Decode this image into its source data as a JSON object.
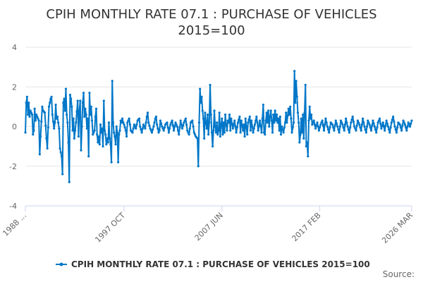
{
  "chart_data": {
    "type": "line",
    "title_lines": [
      "CPIH MONTHLY RATE 07.1 : PURCHASE OF VEHICLES",
      "2015=100"
    ],
    "series_name": "CPIH MONTHLY RATE 07.1 : PURCHASE OF VEHICLES 2015=100",
    "color": "#0077c8",
    "ylim": [
      -4,
      4
    ],
    "yticks": [
      -4,
      -2,
      0,
      2,
      4
    ],
    "x_ticks": [
      {
        "label": "1988 ...",
        "index": 0
      },
      {
        "label": "1997 OCT",
        "index": 117
      },
      {
        "label": "2007 JUN",
        "index": 233
      },
      {
        "label": "2017 FEB",
        "index": 349
      },
      {
        "label": "2026 MAR",
        "index": 458
      }
    ],
    "n_points": 459,
    "anchors": [
      [
        0,
        -0.3
      ],
      [
        1,
        1.2
      ],
      [
        2,
        1.5
      ],
      [
        3,
        0.6
      ],
      [
        4,
        1.2
      ],
      [
        5,
        0.5
      ],
      [
        6,
        0.8
      ],
      [
        8,
        0.6
      ],
      [
        9,
        -0.4
      ],
      [
        10,
        -0.2
      ],
      [
        11,
        0.9
      ],
      [
        12,
        0.3
      ],
      [
        13,
        0.6
      ],
      [
        14,
        0.5
      ],
      [
        16,
        0.3
      ],
      [
        17,
        -1.4
      ],
      [
        18,
        -0.5
      ],
      [
        20,
        1.0
      ],
      [
        21,
        0.8
      ],
      [
        23,
        0.7
      ],
      [
        25,
        -0.6
      ],
      [
        26,
        -1.1
      ],
      [
        28,
        1.0
      ],
      [
        30,
        1.4
      ],
      [
        31,
        1.5
      ],
      [
        32,
        0.6
      ],
      [
        34,
        -0.1
      ],
      [
        35,
        0.2
      ],
      [
        36,
        1.1
      ],
      [
        37,
        0.4
      ],
      [
        38,
        0.5
      ],
      [
        40,
        -0.1
      ],
      [
        41,
        -1.1
      ],
      [
        42,
        -1.3
      ],
      [
        43,
        -1.5
      ],
      [
        44,
        -2.4
      ],
      [
        45,
        1.2
      ],
      [
        46,
        1.4
      ],
      [
        47,
        0.8
      ],
      [
        48,
        1.9
      ],
      [
        49,
        0.6
      ],
      [
        50,
        0.2
      ],
      [
        51,
        -0.8
      ],
      [
        52,
        -2.8
      ],
      [
        53,
        1.6
      ],
      [
        54,
        1.4
      ],
      [
        55,
        1.0
      ],
      [
        56,
        -0.2
      ],
      [
        57,
        0.4
      ],
      [
        58,
        -0.6
      ],
      [
        60,
        0.2
      ],
      [
        62,
        1.3
      ],
      [
        63,
        -0.5
      ],
      [
        64,
        0.8
      ],
      [
        65,
        1.3
      ],
      [
        66,
        -1.2
      ],
      [
        68,
        1.2
      ],
      [
        69,
        1.7
      ],
      [
        70,
        0.5
      ],
      [
        71,
        0.9
      ],
      [
        72,
        0.6
      ],
      [
        73,
        -0.1
      ],
      [
        74,
        0.4
      ],
      [
        75,
        -1.5
      ],
      [
        76,
        1.7
      ],
      [
        77,
        0.6
      ],
      [
        78,
        1.0
      ],
      [
        79,
        0.3
      ],
      [
        80,
        -0.4
      ],
      [
        81,
        -0.3
      ],
      [
        82,
        -0.2
      ],
      [
        83,
        0.5
      ],
      [
        84,
        0.9
      ],
      [
        85,
        -0.4
      ],
      [
        86,
        -0.8
      ],
      [
        87,
        -0.5
      ],
      [
        88,
        -0.9
      ],
      [
        89,
        0.1
      ],
      [
        90,
        -0.3
      ],
      [
        91,
        -0.1
      ],
      [
        92,
        -1.0
      ],
      [
        93,
        1.3
      ],
      [
        94,
        -0.2
      ],
      [
        95,
        -0.4
      ],
      [
        96,
        -0.9
      ],
      [
        97,
        -0.6
      ],
      [
        98,
        -0.8
      ],
      [
        99,
        0.2
      ],
      [
        100,
        -0.6
      ],
      [
        101,
        -0.9
      ],
      [
        102,
        -1.8
      ],
      [
        103,
        2.3
      ],
      [
        104,
        0.2
      ],
      [
        105,
        -0.3
      ],
      [
        106,
        -0.5
      ],
      [
        107,
        -0.9
      ],
      [
        108,
        0.0
      ],
      [
        109,
        -0.3
      ],
      [
        110,
        -1.8
      ],
      [
        111,
        -0.4
      ],
      [
        112,
        -0.2
      ],
      [
        113,
        0.3
      ],
      [
        114,
        0.2
      ],
      [
        115,
        0.4
      ],
      [
        116,
        0.2
      ],
      [
        117,
        0.1
      ],
      [
        119,
        -0.2
      ],
      [
        120,
        -0.5
      ],
      [
        121,
        0.2
      ],
      [
        123,
        0.4
      ],
      [
        125,
        -0.2
      ],
      [
        127,
        -0.3
      ],
      [
        129,
        0.1
      ],
      [
        131,
        -0.1
      ],
      [
        133,
        0.3
      ],
      [
        135,
        0.4
      ],
      [
        136,
        0.0
      ],
      [
        138,
        -0.3
      ],
      [
        140,
        0.1
      ],
      [
        142,
        -0.1
      ],
      [
        144,
        0.5
      ],
      [
        145,
        0.7
      ],
      [
        146,
        0.2
      ],
      [
        148,
        -0.1
      ],
      [
        150,
        -0.3
      ],
      [
        152,
        0.0
      ],
      [
        154,
        0.4
      ],
      [
        155,
        0.5
      ],
      [
        156,
        0.1
      ],
      [
        158,
        -0.3
      ],
      [
        159,
        -0.2
      ],
      [
        160,
        0.3
      ],
      [
        162,
        0.0
      ],
      [
        164,
        -0.2
      ],
      [
        166,
        0.1
      ],
      [
        168,
        0.2
      ],
      [
        170,
        -0.3
      ],
      [
        172,
        0.1
      ],
      [
        174,
        0.3
      ],
      [
        176,
        -0.2
      ],
      [
        178,
        0.2
      ],
      [
        180,
        0.0
      ],
      [
        182,
        -0.4
      ],
      [
        184,
        0.3
      ],
      [
        186,
        -0.1
      ],
      [
        188,
        0.2
      ],
      [
        190,
        0.4
      ],
      [
        192,
        -0.2
      ],
      [
        194,
        -0.4
      ],
      [
        196,
        0.2
      ],
      [
        198,
        0.3
      ],
      [
        200,
        -0.3
      ],
      [
        202,
        -0.5
      ],
      [
        204,
        -0.6
      ],
      [
        205,
        -2.0
      ],
      [
        206,
        0.2
      ],
      [
        207,
        1.9
      ],
      [
        208,
        1.2
      ],
      [
        209,
        1.5
      ],
      [
        210,
        0.8
      ],
      [
        211,
        0.4
      ],
      [
        212,
        -0.6
      ],
      [
        213,
        0.7
      ],
      [
        214,
        0.2
      ],
      [
        215,
        -0.1
      ],
      [
        216,
        0.6
      ],
      [
        217,
        -0.4
      ],
      [
        218,
        0.2
      ],
      [
        219,
        2.1
      ],
      [
        220,
        0.6
      ],
      [
        221,
        -0.3
      ],
      [
        222,
        -1.0
      ],
      [
        223,
        -0.2
      ],
      [
        224,
        0.8
      ],
      [
        225,
        0.0
      ],
      [
        226,
        -0.3
      ],
      [
        227,
        0.2
      ],
      [
        228,
        -0.4
      ],
      [
        229,
        -0.2
      ],
      [
        230,
        0.7
      ],
      [
        231,
        -0.5
      ],
      [
        232,
        0.1
      ],
      [
        233,
        0.4
      ],
      [
        234,
        -0.4
      ],
      [
        235,
        0.2
      ],
      [
        236,
        -0.3
      ],
      [
        237,
        0.6
      ],
      [
        238,
        0.1
      ],
      [
        239,
        -0.2
      ],
      [
        240,
        0.3
      ],
      [
        241,
        0.2
      ],
      [
        242,
        0.6
      ],
      [
        243,
        -0.2
      ],
      [
        244,
        0.4
      ],
      [
        246,
        -0.1
      ],
      [
        248,
        0.3
      ],
      [
        250,
        -0.3
      ],
      [
        252,
        0.2
      ],
      [
        254,
        0.5
      ],
      [
        255,
        -0.3
      ],
      [
        256,
        0.3
      ],
      [
        258,
        -0.2
      ],
      [
        259,
        0.1
      ],
      [
        260,
        -0.5
      ],
      [
        261,
        0.4
      ],
      [
        262,
        0.0
      ],
      [
        263,
        -0.4
      ],
      [
        264,
        0.2
      ],
      [
        266,
        0.5
      ],
      [
        267,
        -0.2
      ],
      [
        268,
        0.3
      ],
      [
        270,
        -0.3
      ],
      [
        272,
        0.1
      ],
      [
        274,
        0.5
      ],
      [
        275,
        0.2
      ],
      [
        276,
        -0.2
      ],
      [
        278,
        0.3
      ],
      [
        280,
        -0.3
      ],
      [
        282,
        1.1
      ],
      [
        283,
        -0.3
      ],
      [
        284,
        -0.4
      ],
      [
        285,
        0.3
      ],
      [
        286,
        0.7
      ],
      [
        287,
        0.2
      ],
      [
        288,
        0.8
      ],
      [
        289,
        0.0
      ],
      [
        290,
        0.5
      ],
      [
        291,
        0.8
      ],
      [
        292,
        0.3
      ],
      [
        293,
        -0.3
      ],
      [
        294,
        0.6
      ],
      [
        295,
        0.2
      ],
      [
        296,
        0.8
      ],
      [
        297,
        0.3
      ],
      [
        298,
        0.6
      ],
      [
        299,
        0.2
      ],
      [
        300,
        0.4
      ],
      [
        301,
        -0.2
      ],
      [
        302,
        0.5
      ],
      [
        303,
        -0.4
      ],
      [
        304,
        0.0
      ],
      [
        306,
        -0.3
      ],
      [
        308,
        0.2
      ],
      [
        309,
        0.7
      ],
      [
        310,
        0.2
      ],
      [
        312,
        0.9
      ],
      [
        313,
        0.6
      ],
      [
        314,
        1.0
      ],
      [
        315,
        0.4
      ],
      [
        316,
        -0.3
      ],
      [
        318,
        0.2
      ],
      [
        319,
        2.8
      ],
      [
        320,
        1.2
      ],
      [
        321,
        2.3
      ],
      [
        322,
        1.5
      ],
      [
        323,
        0.7
      ],
      [
        324,
        0.2
      ],
      [
        325,
        -0.8
      ],
      [
        326,
        -0.4
      ],
      [
        327,
        0.4
      ],
      [
        328,
        -0.3
      ],
      [
        329,
        0.6
      ],
      [
        330,
        -0.6
      ],
      [
        331,
        0.7
      ],
      [
        332,
        2.1
      ],
      [
        333,
        -1.0
      ],
      [
        334,
        -0.8
      ],
      [
        335,
        -1.5
      ],
      [
        336,
        0.3
      ],
      [
        337,
        1.0
      ],
      [
        338,
        0.4
      ],
      [
        339,
        0.6
      ],
      [
        340,
        0.1
      ],
      [
        342,
        0.3
      ],
      [
        344,
        -0.1
      ],
      [
        346,
        0.2
      ],
      [
        348,
        -0.2
      ],
      [
        350,
        0.1
      ],
      [
        352,
        0.3
      ],
      [
        354,
        -0.2
      ],
      [
        356,
        0.4
      ],
      [
        358,
        0.0
      ],
      [
        360,
        -0.3
      ],
      [
        362,
        0.2
      ],
      [
        364,
        0.1
      ],
      [
        366,
        -0.2
      ],
      [
        368,
        0.3
      ],
      [
        370,
        0.0
      ],
      [
        372,
        -0.3
      ],
      [
        374,
        0.3
      ],
      [
        376,
        0.1
      ],
      [
        378,
        -0.2
      ],
      [
        380,
        0.4
      ],
      [
        382,
        0.0
      ],
      [
        384,
        -0.3
      ],
      [
        386,
        0.2
      ],
      [
        388,
        0.5
      ],
      [
        390,
        0.0
      ],
      [
        392,
        -0.2
      ],
      [
        394,
        0.3
      ],
      [
        396,
        0.1
      ],
      [
        398,
        -0.2
      ],
      [
        400,
        0.4
      ],
      [
        402,
        0.0
      ],
      [
        404,
        -0.3
      ],
      [
        406,
        0.3
      ],
      [
        408,
        0.1
      ],
      [
        410,
        -0.2
      ],
      [
        412,
        0.3
      ],
      [
        414,
        0.0
      ],
      [
        416,
        -0.3
      ],
      [
        418,
        0.2
      ],
      [
        420,
        0.4
      ],
      [
        422,
        -0.1
      ],
      [
        424,
        0.2
      ],
      [
        426,
        -0.2
      ],
      [
        428,
        0.3
      ],
      [
        430,
        0.0
      ],
      [
        432,
        -0.3
      ],
      [
        434,
        0.2
      ],
      [
        436,
        0.5
      ],
      [
        438,
        0.0
      ],
      [
        440,
        -0.3
      ],
      [
        442,
        0.2
      ],
      [
        444,
        0.1
      ],
      [
        446,
        -0.2
      ],
      [
        448,
        0.3
      ],
      [
        450,
        0.1
      ],
      [
        452,
        -0.2
      ],
      [
        454,
        0.2
      ],
      [
        456,
        0.0
      ],
      [
        458,
        0.3
      ]
    ]
  },
  "legend": {
    "label": "CPIH MONTHLY RATE 07.1 : PURCHASE OF VEHICLES 2015=100"
  },
  "source": {
    "label": "Source:"
  }
}
